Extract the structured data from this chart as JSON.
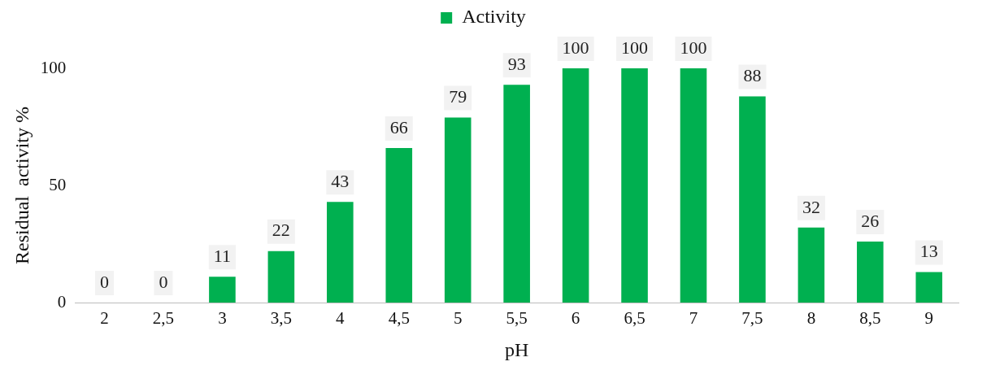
{
  "chart_data": {
    "type": "bar",
    "xlabel": "pH",
    "ylabel": "Residual  activity %",
    "categories": [
      "2",
      "2,5",
      "3",
      "3,5",
      "4",
      "4,5",
      "5",
      "5,5",
      "6",
      "6,5",
      "7",
      "7,5",
      "8",
      "8,5",
      "9"
    ],
    "series": [
      {
        "name": "Activity",
        "color": "#00b050",
        "values": [
          0,
          0,
          11,
          22,
          43,
          66,
          79,
          93,
          100,
          100,
          100,
          88,
          32,
          26,
          13
        ]
      }
    ],
    "ylim": [
      0,
      100
    ],
    "yticks": [
      0,
      50,
      100
    ],
    "grid": false,
    "legend": "top",
    "data_labels": true
  }
}
